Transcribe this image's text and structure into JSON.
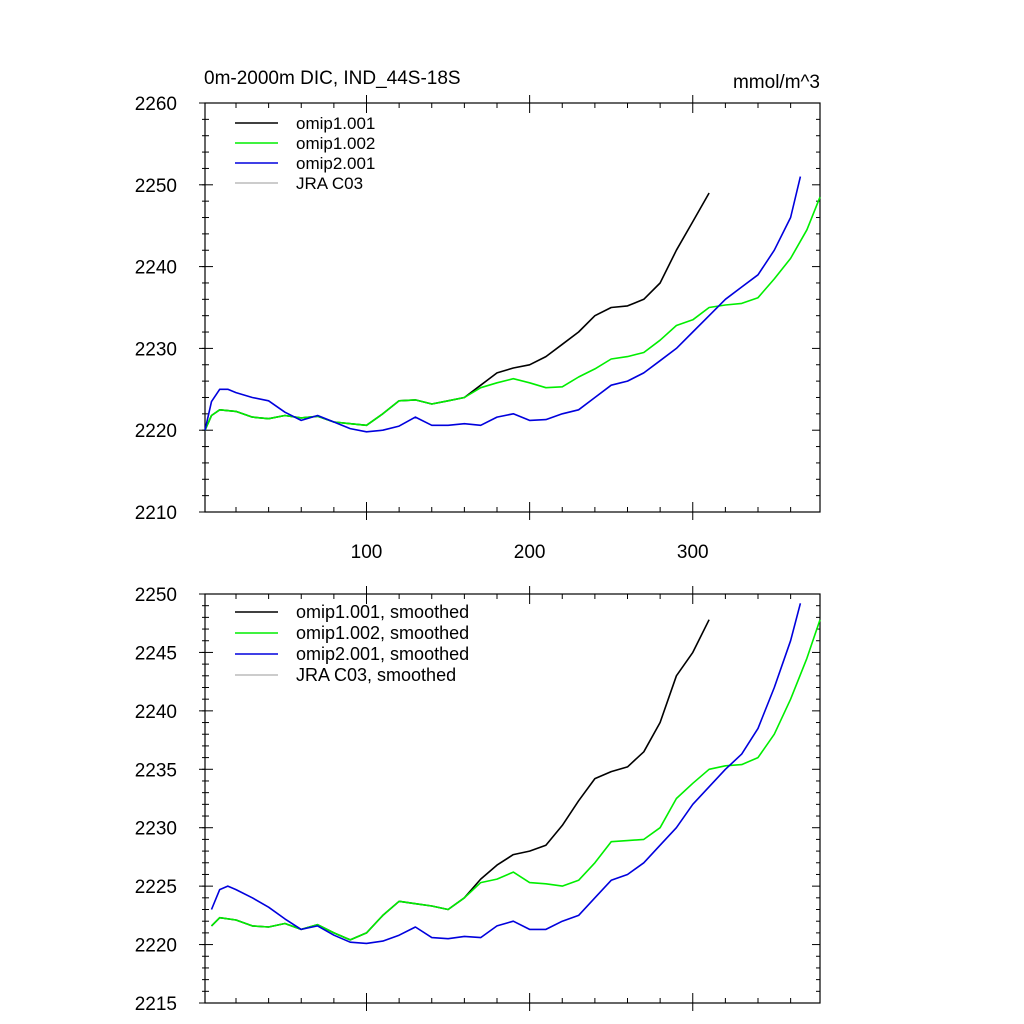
{
  "chart_data": [
    {
      "type": "line",
      "title": "0m-2000m DIC, IND_44S-18S",
      "units": "mmol/m^3",
      "xlim": [
        1,
        378
      ],
      "ylim": [
        2210,
        2260
      ],
      "x_ticks": [
        100,
        200,
        300
      ],
      "x_tick_labels": [
        "100",
        "200",
        "300"
      ],
      "y_ticks": [
        2210,
        2220,
        2230,
        2240,
        2250,
        2260
      ],
      "y_tick_labels": [
        "2210",
        "2220",
        "2230",
        "2240",
        "2250",
        "2260"
      ],
      "grid": false,
      "legend_position": "top-left",
      "series": [
        {
          "name": "omip1.001",
          "color": "#000000",
          "x": [
            1,
            5,
            10,
            20,
            30,
            40,
            50,
            60,
            70,
            80,
            90,
            100,
            110,
            120,
            130,
            140,
            150,
            160,
            170,
            180,
            190,
            200,
            210,
            220,
            230,
            240,
            250,
            260,
            270,
            280,
            290,
            300,
            310
          ],
          "y": [
            2220.0,
            2221.8,
            2222.5,
            2222.3,
            2221.6,
            2221.4,
            2221.8,
            2221.5,
            2221.7,
            2221.0,
            2220.8,
            2220.6,
            2222.0,
            2223.6,
            2223.7,
            2223.2,
            2223.6,
            2224.0,
            2225.5,
            2227.0,
            2227.6,
            2228.0,
            2229.0,
            2230.5,
            2232.0,
            2234.0,
            2235.0,
            2235.2,
            2236.0,
            2238.0,
            2242.0,
            2245.5,
            2249.0
          ]
        },
        {
          "name": "omip1.002",
          "color": "#00ee00",
          "x": [
            1,
            5,
            10,
            20,
            30,
            40,
            50,
            60,
            70,
            80,
            90,
            100,
            110,
            120,
            130,
            140,
            150,
            160,
            170,
            180,
            190,
            200,
            210,
            220,
            230,
            240,
            250,
            260,
            270,
            280,
            290,
            300,
            310,
            320,
            330,
            340,
            350,
            360,
            370,
            378
          ],
          "y": [
            2220.0,
            2221.8,
            2222.5,
            2222.3,
            2221.6,
            2221.4,
            2221.8,
            2221.5,
            2221.7,
            2221.0,
            2220.8,
            2220.6,
            2222.0,
            2223.6,
            2223.7,
            2223.2,
            2223.6,
            2224.0,
            2225.2,
            2225.8,
            2226.3,
            2225.8,
            2225.2,
            2225.3,
            2226.5,
            2227.5,
            2228.7,
            2229.0,
            2229.5,
            2231.0,
            2232.8,
            2233.5,
            2235.0,
            2235.3,
            2235.5,
            2236.2,
            2238.5,
            2241.0,
            2244.5,
            2248.5
          ]
        },
        {
          "name": "omip2.001",
          "color": "#0000dd",
          "x": [
            1,
            5,
            10,
            15,
            20,
            30,
            40,
            50,
            60,
            70,
            80,
            90,
            100,
            110,
            120,
            130,
            140,
            150,
            160,
            170,
            180,
            190,
            200,
            210,
            220,
            230,
            240,
            250,
            260,
            270,
            280,
            290,
            300,
            310,
            320,
            330,
            340,
            350,
            360,
            366
          ],
          "y": [
            2220.0,
            2223.5,
            2225.0,
            2225.0,
            2224.6,
            2224.0,
            2223.6,
            2222.2,
            2221.2,
            2221.8,
            2221.0,
            2220.2,
            2219.8,
            2220.0,
            2220.5,
            2221.6,
            2220.6,
            2220.6,
            2220.8,
            2220.6,
            2221.6,
            2222.0,
            2221.2,
            2221.3,
            2222.0,
            2222.5,
            2224.0,
            2225.5,
            2226.0,
            2227.0,
            2228.5,
            2230.0,
            2232.0,
            2234.0,
            2236.0,
            2237.5,
            2239.0,
            2242.0,
            2246.0,
            2251.0
          ]
        },
        {
          "name": "JRA C03",
          "color": "#bbbbbb",
          "x": [],
          "y": []
        }
      ]
    },
    {
      "type": "line",
      "xlim": [
        1,
        378
      ],
      "ylim": [
        2215,
        2250
      ],
      "x_ticks": [
        100,
        200,
        300
      ],
      "y_ticks": [
        2215,
        2220,
        2225,
        2230,
        2235,
        2240,
        2245,
        2250
      ],
      "y_tick_labels": [
        "2215",
        "2220",
        "2225",
        "2230",
        "2235",
        "2240",
        "2245",
        "2250"
      ],
      "grid": false,
      "legend_position": "top-left",
      "series": [
        {
          "name": "omip1.001, smoothed",
          "color": "#000000",
          "x": [
            5,
            10,
            20,
            30,
            40,
            50,
            60,
            70,
            80,
            90,
            100,
            110,
            120,
            130,
            140,
            150,
            160,
            170,
            180,
            190,
            200,
            210,
            220,
            230,
            240,
            250,
            260,
            270,
            280,
            290,
            300,
            310
          ],
          "y": [
            2221.6,
            2222.3,
            2222.1,
            2221.6,
            2221.5,
            2221.8,
            2221.3,
            2221.7,
            2221.0,
            2220.4,
            2221.0,
            2222.5,
            2223.7,
            2223.5,
            2223.3,
            2223.0,
            2224.0,
            2225.6,
            2226.8,
            2227.7,
            2228.0,
            2228.5,
            2230.2,
            2232.3,
            2234.2,
            2234.8,
            2235.2,
            2236.5,
            2239.0,
            2243.0,
            2245.0,
            2247.8
          ]
        },
        {
          "name": "omip1.002, smoothed",
          "color": "#00ee00",
          "x": [
            5,
            10,
            20,
            30,
            40,
            50,
            60,
            70,
            80,
            90,
            100,
            110,
            120,
            130,
            140,
            150,
            160,
            170,
            180,
            190,
            200,
            210,
            220,
            230,
            240,
            250,
            260,
            270,
            280,
            290,
            300,
            310,
            320,
            330,
            340,
            350,
            360,
            370,
            378
          ],
          "y": [
            2221.6,
            2222.3,
            2222.1,
            2221.6,
            2221.5,
            2221.8,
            2221.3,
            2221.7,
            2221.0,
            2220.4,
            2221.0,
            2222.5,
            2223.7,
            2223.5,
            2223.3,
            2223.0,
            2224.0,
            2225.3,
            2225.6,
            2226.2,
            2225.3,
            2225.2,
            2225.0,
            2225.5,
            2227.0,
            2228.8,
            2228.9,
            2229.0,
            2230.0,
            2232.5,
            2233.8,
            2235.0,
            2235.3,
            2235.4,
            2236.0,
            2238.0,
            2241.0,
            2244.5,
            2247.8
          ]
        },
        {
          "name": "omip2.001, smoothed",
          "color": "#0000dd",
          "x": [
            5,
            10,
            15,
            20,
            30,
            40,
            50,
            60,
            70,
            80,
            90,
            100,
            110,
            120,
            130,
            140,
            150,
            160,
            170,
            180,
            190,
            200,
            210,
            220,
            230,
            240,
            250,
            260,
            270,
            280,
            290,
            300,
            310,
            320,
            330,
            340,
            350,
            360,
            366
          ],
          "y": [
            2223.0,
            2224.7,
            2225.0,
            2224.7,
            2224.0,
            2223.2,
            2222.2,
            2221.3,
            2221.6,
            2220.8,
            2220.2,
            2220.1,
            2220.3,
            2220.8,
            2221.5,
            2220.6,
            2220.5,
            2220.7,
            2220.6,
            2221.6,
            2222.0,
            2221.3,
            2221.3,
            2222.0,
            2222.5,
            2224.0,
            2225.5,
            2226.0,
            2227.0,
            2228.5,
            2230.0,
            2232.0,
            2233.5,
            2235.0,
            2236.3,
            2238.5,
            2242.0,
            2246.0,
            2249.2
          ]
        },
        {
          "name": "JRA C03, smoothed",
          "color": "#bbbbbb",
          "x": [],
          "y": []
        }
      ]
    }
  ]
}
